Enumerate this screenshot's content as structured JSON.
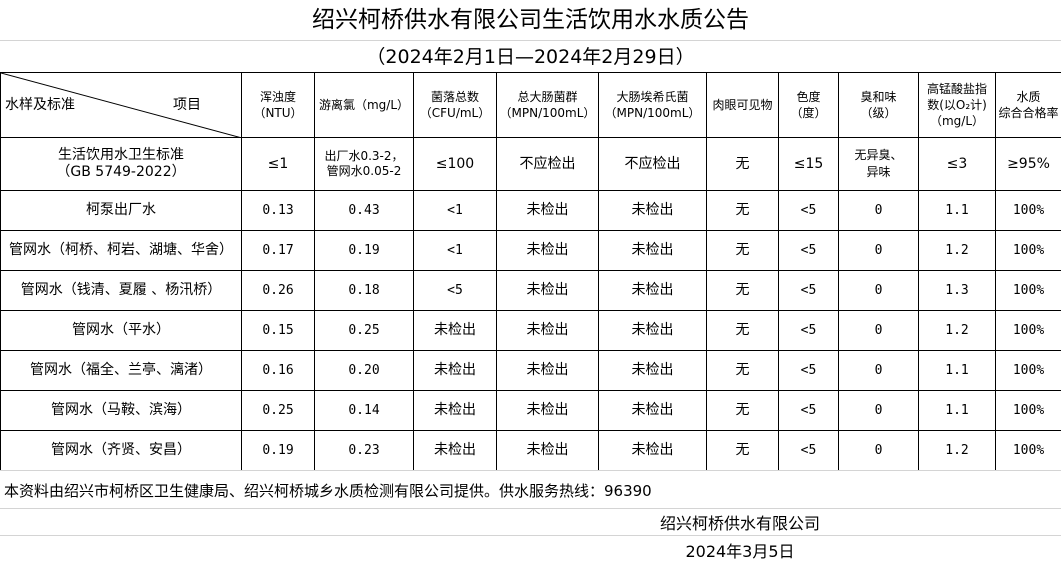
{
  "title": "绍兴柯桥供水有限公司生活饮用水水质公告",
  "subtitle": "（2024年2月1日—2024年2月29日）",
  "header": {
    "corner_left": "水样及标准",
    "corner_right": "项目",
    "columns": [
      "浑浊度\n（NTU）",
      "游离氯（mg/L）",
      "菌落总数\n（CFU/mL）",
      "总大肠菌群\n（MPN/100mL）",
      "大肠埃希氏菌\n（MPN/100mL）",
      "肉眼可见物",
      "色度\n（度）",
      "臭和味\n（级）",
      "高锰酸盐指\n数(以O₂计)\n（mg/L）",
      "水质\n综合合格率"
    ]
  },
  "standard": {
    "name": "生活饮用水卫生标准\n（GB 5749-2022）",
    "values": [
      "≤1",
      "出厂水0.3-2，\n管网水0.05-2",
      "≤100",
      "不应检出",
      "不应检出",
      "无",
      "≤15",
      "无异臭、\n异味",
      "≤3",
      "≥95%"
    ]
  },
  "rows": [
    {
      "name": "柯泵出厂水",
      "values": [
        "0.13",
        "0.43",
        "<1",
        "未检出",
        "未检出",
        "无",
        "<5",
        "0",
        "1.1",
        "100%"
      ]
    },
    {
      "name": "管网水（柯桥、柯岩、湖塘、华舍）",
      "values": [
        "0.17",
        "0.19",
        "<1",
        "未检出",
        "未检出",
        "无",
        "<5",
        "0",
        "1.2",
        "100%"
      ]
    },
    {
      "name": "管网水（钱清、夏履 、杨汛桥）",
      "values": [
        "0.26",
        "0.18",
        "<5",
        "未检出",
        "未检出",
        "无",
        "<5",
        "0",
        "1.3",
        "100%"
      ]
    },
    {
      "name": "管网水（平水）",
      "values": [
        "0.15",
        "0.25",
        "未检出",
        "未检出",
        "未检出",
        "无",
        "<5",
        "0",
        "1.2",
        "100%"
      ]
    },
    {
      "name": "管网水（福全、兰亭、漓渚）",
      "values": [
        "0.16",
        "0.20",
        "未检出",
        "未检出",
        "未检出",
        "无",
        "<5",
        "0",
        "1.1",
        "100%"
      ]
    },
    {
      "name": "管网水（马鞍、滨海）",
      "values": [
        "0.25",
        "0.14",
        "未检出",
        "未检出",
        "未检出",
        "无",
        "<5",
        "0",
        "1.1",
        "100%"
      ]
    },
    {
      "name": "管网水（齐贤、安昌）",
      "values": [
        "0.19",
        "0.23",
        "未检出",
        "未检出",
        "未检出",
        "无",
        "<5",
        "0",
        "1.2",
        "100%"
      ]
    }
  ],
  "note": "本资料由绍兴市柯桥区卫生健康局、绍兴柯桥城乡水质检测有限公司提供。供水服务热线：96390",
  "signature": {
    "company": "绍兴柯桥供水有限公司",
    "date": "2024年3月5日"
  }
}
